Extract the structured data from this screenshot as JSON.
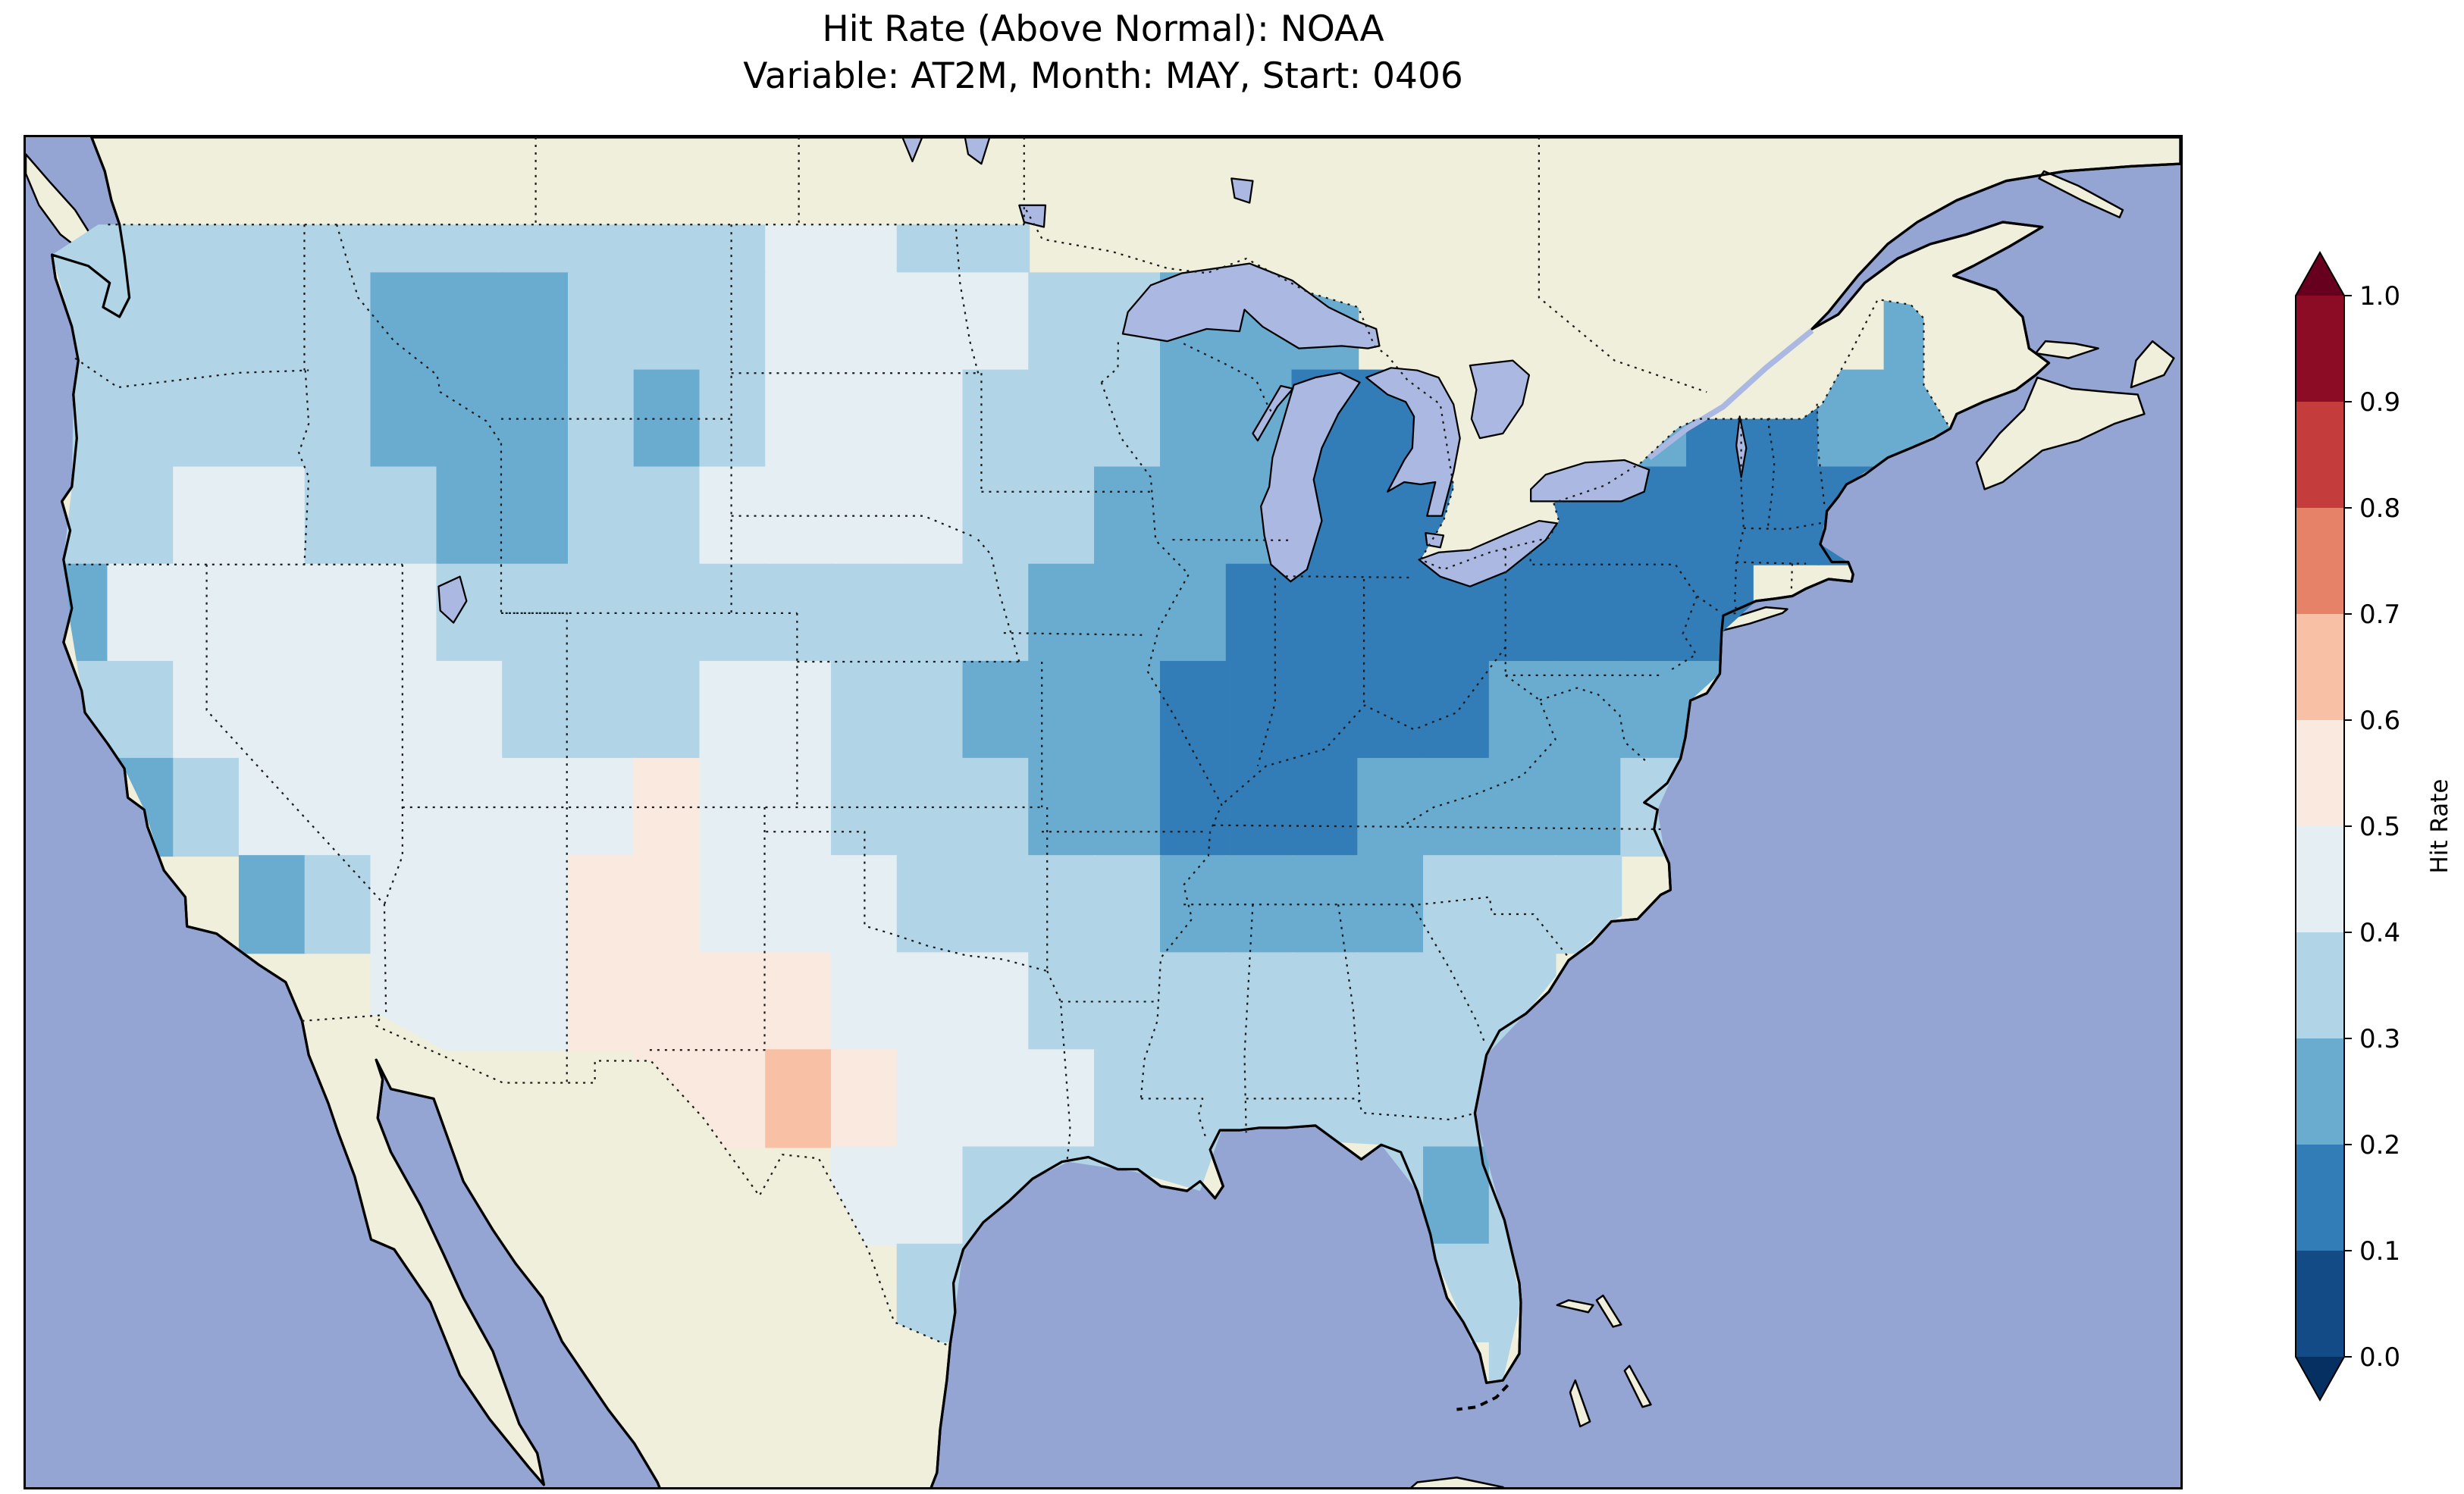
{
  "title": {
    "line1": "Hit Rate (Above Normal): NOAA",
    "line2": "Variable: AT2M, Month: MAY, Start: 0406"
  },
  "colorbar": {
    "label": "Hit Rate",
    "ticks": [
      "1.0",
      "0.9",
      "0.8",
      "0.7",
      "0.6",
      "0.5",
      "0.4",
      "0.3",
      "0.2",
      "0.1",
      "0.0"
    ],
    "boundaries": [
      0.0,
      0.1,
      0.2,
      0.3,
      0.4,
      0.5,
      0.6,
      0.7,
      0.8,
      0.9,
      1.0
    ],
    "band_colors": [
      "#134b86",
      "#327cb7",
      "#6aacd0",
      "#b1d5e7",
      "#e4eef3",
      "#fae9df",
      "#f8c0a4",
      "#e58267",
      "#c43c3c",
      "#8c0c25"
    ],
    "under_color": "#053061",
    "over_color": "#67001f"
  },
  "map": {
    "ocean_color": "#94a5d3",
    "land_color": "#efefdb",
    "lake_color": "#abb8e2",
    "extent": {
      "lon_min": -125.5,
      "lon_max": -60.0,
      "lat_min": 23.0,
      "lat_max": 50.8
    }
  },
  "chart_data": {
    "type": "heatmap",
    "title": "Hit Rate (Above Normal): NOAA",
    "subtitle": "Variable: AT2M, Month: MAY, Start: 0406",
    "colorbar_label": "Hit Rate",
    "region": "Contiguous United States",
    "color_scale": {
      "cmap": "RdBu_r (discrete, extended both ends)",
      "vmin": 0.0,
      "vmax": 1.0,
      "step": 0.1
    },
    "grid": {
      "description": "Hit-rate values estimated from map colors to nearest 0.1 band midpoint; null = outside USA (no data shown)",
      "cell_size_deg": 2,
      "lon_centers": [
        -124,
        -122,
        -120,
        -118,
        -116,
        -114,
        -112,
        -110,
        -108,
        -106,
        -104,
        -102,
        -100,
        -98,
        -96,
        -94,
        -92,
        -90,
        -88,
        -86,
        -84,
        -82,
        -80,
        -78,
        -76,
        -74,
        -72,
        -70,
        -68
      ],
      "lat_centers": [
        49,
        47,
        45,
        43,
        41,
        39,
        37,
        35,
        33,
        31,
        29,
        27,
        25
      ],
      "values": [
        [
          0.35,
          0.35,
          0.35,
          0.35,
          0.35,
          0.35,
          0.35,
          0.35,
          0.35,
          0.35,
          0.35,
          0.45,
          0.45,
          0.35,
          0.35,
          null,
          null,
          null,
          null,
          null,
          null,
          null,
          null,
          null,
          null,
          null,
          null,
          null,
          null
        ],
        [
          0.35,
          0.35,
          0.35,
          0.35,
          0.35,
          0.25,
          0.25,
          0.25,
          0.35,
          0.35,
          0.35,
          0.45,
          0.45,
          0.45,
          0.45,
          0.35,
          0.35,
          0.25,
          0.25,
          0.25,
          null,
          null,
          null,
          null,
          null,
          null,
          null,
          null,
          0.25
        ],
        [
          0.35,
          0.35,
          0.35,
          0.35,
          0.35,
          0.25,
          0.25,
          0.25,
          0.35,
          0.25,
          0.35,
          0.45,
          0.45,
          0.45,
          0.35,
          0.35,
          0.35,
          0.25,
          0.25,
          0.15,
          0.15,
          null,
          null,
          null,
          0.25,
          0.15,
          0.15,
          0.25,
          0.25
        ],
        [
          0.35,
          0.35,
          0.45,
          0.45,
          0.35,
          0.35,
          0.25,
          0.25,
          0.35,
          0.35,
          0.45,
          0.45,
          0.45,
          0.45,
          0.35,
          0.35,
          0.25,
          0.25,
          0.25,
          0.15,
          0.15,
          0.15,
          0.15,
          0.15,
          0.15,
          0.15,
          0.15,
          0.15,
          null
        ],
        [
          0.25,
          0.45,
          0.45,
          0.45,
          0.45,
          0.45,
          0.35,
          0.35,
          0.35,
          0.35,
          0.35,
          0.35,
          0.35,
          0.35,
          0.35,
          0.25,
          0.25,
          0.25,
          0.15,
          0.15,
          0.15,
          0.15,
          0.15,
          0.15,
          0.15,
          0.15,
          null,
          null,
          null
        ],
        [
          0.35,
          0.35,
          0.45,
          0.45,
          0.45,
          0.45,
          0.45,
          0.35,
          0.35,
          0.35,
          0.45,
          0.45,
          0.35,
          0.35,
          0.25,
          0.25,
          0.25,
          0.15,
          0.15,
          0.15,
          0.15,
          0.15,
          0.25,
          0.25,
          0.25,
          0.25,
          null,
          null,
          null
        ],
        [
          null,
          0.25,
          0.35,
          0.45,
          0.45,
          0.45,
          0.45,
          0.45,
          0.45,
          0.55,
          0.45,
          0.45,
          0.35,
          0.35,
          0.35,
          0.25,
          0.25,
          0.15,
          0.15,
          0.15,
          0.25,
          0.25,
          0.25,
          0.25,
          0.35,
          null,
          null,
          null,
          null
        ],
        [
          null,
          null,
          null,
          0.25,
          0.35,
          0.45,
          0.45,
          0.45,
          0.55,
          0.55,
          0.45,
          0.45,
          0.45,
          0.35,
          0.35,
          0.35,
          0.35,
          0.25,
          0.25,
          0.25,
          0.25,
          0.35,
          0.35,
          0.35,
          null,
          null,
          null,
          null,
          null
        ],
        [
          null,
          null,
          null,
          null,
          null,
          0.45,
          0.45,
          0.45,
          0.55,
          0.55,
          0.55,
          0.55,
          0.45,
          0.45,
          0.45,
          0.35,
          0.35,
          0.35,
          0.35,
          0.35,
          0.35,
          0.35,
          0.35,
          null,
          null,
          null,
          null,
          null,
          null
        ],
        [
          null,
          null,
          null,
          null,
          null,
          null,
          null,
          null,
          null,
          0.55,
          0.55,
          0.65,
          0.55,
          0.45,
          0.45,
          0.45,
          0.35,
          0.35,
          0.35,
          0.35,
          0.35,
          0.35,
          null,
          null,
          null,
          null,
          null,
          null,
          null
        ],
        [
          null,
          null,
          null,
          null,
          null,
          null,
          null,
          null,
          null,
          null,
          null,
          null,
          0.45,
          0.45,
          0.35,
          0.35,
          0.35,
          0.35,
          null,
          null,
          0.35,
          0.25,
          0.35,
          null,
          null,
          null,
          null,
          null,
          null
        ],
        [
          null,
          null,
          null,
          null,
          null,
          null,
          null,
          null,
          null,
          null,
          null,
          null,
          null,
          0.35,
          null,
          null,
          null,
          null,
          null,
          null,
          null,
          0.35,
          0.35,
          null,
          null,
          null,
          null,
          null,
          null
        ],
        [
          null,
          null,
          null,
          null,
          null,
          null,
          null,
          null,
          null,
          null,
          null,
          null,
          null,
          null,
          null,
          null,
          null,
          null,
          null,
          null,
          null,
          null,
          0.35,
          null,
          null,
          null,
          null,
          null,
          null
        ]
      ]
    }
  }
}
